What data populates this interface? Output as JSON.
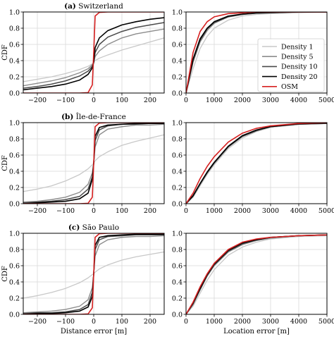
{
  "figure": {
    "x_label_left": "Distance error [m]",
    "x_label_right": "Location error [m]",
    "y_label": "CDF",
    "legend": {
      "entries": [
        {
          "name": "Density 1",
          "color": "#c8c8c8"
        },
        {
          "name": "Density 5",
          "color": "#8c8c8c"
        },
        {
          "name": "Density 10",
          "color": "#4a4a4a"
        },
        {
          "name": "Density 20",
          "color": "#000000"
        },
        {
          "name": "OSM",
          "color": "#d62020"
        }
      ],
      "placement": "right, inside top-right panel"
    }
  },
  "chart_data": [
    {
      "type": "line",
      "panel_label": "(a)",
      "panel_name": "Switzerland",
      "xlabel": "",
      "ylabel": "CDF",
      "xlim": [
        -250,
        250
      ],
      "ylim": [
        0,
        1
      ],
      "x_ticks": [
        -200,
        -100,
        0,
        100,
        200
      ],
      "y_ticks": [
        0.0,
        0.2,
        0.4,
        0.6,
        0.8,
        1.0
      ],
      "grid": true,
      "x": [
        -250,
        -200,
        -150,
        -100,
        -50,
        -20,
        -5,
        0,
        5,
        20,
        50,
        100,
        150,
        200,
        250
      ],
      "series": [
        {
          "name": "Density 1",
          "values": [
            0.14,
            0.17,
            0.2,
            0.24,
            0.29,
            0.33,
            0.36,
            0.38,
            0.4,
            0.43,
            0.47,
            0.53,
            0.58,
            0.63,
            0.68
          ]
        },
        {
          "name": "Density 5",
          "values": [
            0.09,
            0.12,
            0.15,
            0.19,
            0.25,
            0.3,
            0.35,
            0.38,
            0.45,
            0.52,
            0.6,
            0.68,
            0.73,
            0.76,
            0.79
          ]
        },
        {
          "name": "Density 10",
          "values": [
            0.06,
            0.08,
            0.11,
            0.15,
            0.21,
            0.27,
            0.33,
            0.38,
            0.5,
            0.6,
            0.69,
            0.76,
            0.81,
            0.84,
            0.87
          ]
        },
        {
          "name": "Density 20",
          "values": [
            0.04,
            0.06,
            0.08,
            0.11,
            0.16,
            0.23,
            0.31,
            0.38,
            0.56,
            0.68,
            0.77,
            0.84,
            0.88,
            0.91,
            0.93
          ]
        },
        {
          "name": "OSM",
          "values": [
            0.0,
            0.0,
            0.0,
            0.0,
            0.0,
            0.005,
            0.1,
            0.5,
            0.95,
            0.995,
            1.0,
            1.0,
            1.0,
            1.0,
            1.0
          ]
        }
      ]
    },
    {
      "type": "line",
      "panel_label": "",
      "panel_name": "",
      "xlabel": "",
      "ylabel": "",
      "xlim": [
        0,
        5000
      ],
      "ylim": [
        0,
        1
      ],
      "x_ticks": [
        0,
        1000,
        2000,
        3000,
        4000,
        5000
      ],
      "y_ticks": [
        0.0,
        0.2,
        0.4,
        0.6,
        0.8,
        1.0
      ],
      "grid": true,
      "x": [
        0,
        250,
        500,
        750,
        1000,
        1500,
        2000,
        2500,
        3000,
        4000,
        5000
      ],
      "series": [
        {
          "name": "Density 1",
          "values": [
            0.0,
            0.3,
            0.55,
            0.7,
            0.8,
            0.9,
            0.95,
            0.97,
            0.98,
            0.99,
            1.0
          ]
        },
        {
          "name": "Density 5",
          "values": [
            0.0,
            0.38,
            0.63,
            0.77,
            0.86,
            0.94,
            0.97,
            0.985,
            0.99,
            1.0,
            1.0
          ]
        },
        {
          "name": "Density 10",
          "values": [
            0.0,
            0.4,
            0.65,
            0.79,
            0.87,
            0.94,
            0.97,
            0.985,
            0.99,
            1.0,
            1.0
          ]
        },
        {
          "name": "Density 20",
          "values": [
            0.0,
            0.42,
            0.67,
            0.8,
            0.88,
            0.95,
            0.975,
            0.99,
            0.995,
            1.0,
            1.0
          ]
        },
        {
          "name": "OSM",
          "values": [
            0.0,
            0.5,
            0.76,
            0.88,
            0.94,
            0.98,
            0.99,
            1.0,
            1.0,
            1.0,
            1.0
          ]
        }
      ]
    },
    {
      "type": "line",
      "panel_label": "(b)",
      "panel_name": "Île-de-France",
      "xlabel": "",
      "ylabel": "CDF",
      "xlim": [
        -250,
        250
      ],
      "ylim": [
        0,
        1
      ],
      "x_ticks": [
        -200,
        -100,
        0,
        100,
        200
      ],
      "y_ticks": [
        0.0,
        0.2,
        0.4,
        0.6,
        0.8,
        1.0
      ],
      "grid": true,
      "x": [
        -250,
        -200,
        -150,
        -100,
        -50,
        -20,
        -5,
        0,
        5,
        20,
        50,
        100,
        150,
        200,
        250
      ],
      "series": [
        {
          "name": "Density 1",
          "values": [
            0.15,
            0.18,
            0.22,
            0.28,
            0.36,
            0.43,
            0.48,
            0.5,
            0.53,
            0.58,
            0.64,
            0.72,
            0.77,
            0.81,
            0.85
          ]
        },
        {
          "name": "Density 5",
          "values": [
            0.02,
            0.03,
            0.05,
            0.08,
            0.14,
            0.24,
            0.38,
            0.5,
            0.7,
            0.85,
            0.92,
            0.95,
            0.97,
            0.97,
            0.98
          ]
        },
        {
          "name": "Density 10",
          "values": [
            0.01,
            0.02,
            0.03,
            0.05,
            0.09,
            0.18,
            0.33,
            0.5,
            0.78,
            0.91,
            0.96,
            0.98,
            0.98,
            0.99,
            0.99
          ]
        },
        {
          "name": "Density 20",
          "values": [
            0.0,
            0.01,
            0.02,
            0.03,
            0.06,
            0.13,
            0.3,
            0.5,
            0.83,
            0.94,
            0.97,
            0.98,
            0.99,
            0.99,
            0.99
          ]
        },
        {
          "name": "OSM",
          "values": [
            0.0,
            0.0,
            0.0,
            0.0,
            0.0,
            0.005,
            0.08,
            0.5,
            0.95,
            0.995,
            1.0,
            1.0,
            1.0,
            1.0,
            1.0
          ]
        }
      ]
    },
    {
      "type": "line",
      "panel_label": "",
      "panel_name": "",
      "xlabel": "",
      "ylabel": "",
      "xlim": [
        0,
        5000
      ],
      "ylim": [
        0,
        1
      ],
      "x_ticks": [
        0,
        1000,
        2000,
        3000,
        4000,
        5000
      ],
      "y_ticks": [
        0.0,
        0.2,
        0.4,
        0.6,
        0.8,
        1.0
      ],
      "grid": true,
      "x": [
        0,
        250,
        500,
        750,
        1000,
        1500,
        2000,
        2500,
        3000,
        4000,
        5000
      ],
      "series": [
        {
          "name": "Density 1",
          "values": [
            0.0,
            0.08,
            0.22,
            0.36,
            0.48,
            0.68,
            0.81,
            0.89,
            0.94,
            0.98,
            0.99
          ]
        },
        {
          "name": "Density 5",
          "values": [
            0.0,
            0.09,
            0.24,
            0.38,
            0.5,
            0.7,
            0.83,
            0.9,
            0.95,
            0.98,
            0.99
          ]
        },
        {
          "name": "Density 10",
          "values": [
            0.0,
            0.09,
            0.24,
            0.38,
            0.5,
            0.7,
            0.83,
            0.9,
            0.95,
            0.98,
            0.99
          ]
        },
        {
          "name": "Density 20",
          "values": [
            0.0,
            0.1,
            0.25,
            0.39,
            0.51,
            0.71,
            0.84,
            0.91,
            0.95,
            0.985,
            0.995
          ]
        },
        {
          "name": "OSM",
          "values": [
            0.0,
            0.13,
            0.31,
            0.46,
            0.58,
            0.76,
            0.87,
            0.93,
            0.96,
            0.99,
            1.0
          ]
        }
      ]
    },
    {
      "type": "line",
      "panel_label": "(c)",
      "panel_name": "São Paulo",
      "xlabel": "Distance error [m]",
      "ylabel": "CDF",
      "xlim": [
        -250,
        250
      ],
      "ylim": [
        0,
        1
      ],
      "x_ticks": [
        -200,
        -100,
        0,
        100,
        200
      ],
      "y_ticks": [
        0.0,
        0.2,
        0.4,
        0.6,
        0.8,
        1.0
      ],
      "grid": true,
      "x": [
        -250,
        -200,
        -150,
        -100,
        -50,
        -20,
        -5,
        0,
        5,
        20,
        50,
        100,
        150,
        200,
        250
      ],
      "series": [
        {
          "name": "Density 1",
          "values": [
            0.2,
            0.23,
            0.27,
            0.32,
            0.39,
            0.45,
            0.49,
            0.5,
            0.52,
            0.56,
            0.61,
            0.67,
            0.71,
            0.74,
            0.77
          ]
        },
        {
          "name": "Density 5",
          "values": [
            0.02,
            0.03,
            0.04,
            0.06,
            0.1,
            0.18,
            0.33,
            0.5,
            0.72,
            0.86,
            0.92,
            0.95,
            0.96,
            0.96,
            0.97
          ]
        },
        {
          "name": "Density 10",
          "values": [
            0.01,
            0.02,
            0.02,
            0.03,
            0.06,
            0.12,
            0.27,
            0.5,
            0.8,
            0.92,
            0.96,
            0.97,
            0.98,
            0.98,
            0.98
          ]
        },
        {
          "name": "Density 20",
          "values": [
            0.0,
            0.01,
            0.01,
            0.02,
            0.04,
            0.09,
            0.22,
            0.5,
            0.85,
            0.95,
            0.97,
            0.98,
            0.99,
            0.99,
            0.99
          ]
        },
        {
          "name": "OSM",
          "values": [
            0.0,
            0.0,
            0.0,
            0.0,
            0.0,
            0.005,
            0.08,
            0.5,
            0.95,
            0.995,
            1.0,
            1.0,
            1.0,
            1.0,
            1.0
          ]
        }
      ]
    },
    {
      "type": "line",
      "panel_label": "",
      "panel_name": "",
      "xlabel": "Location error [m]",
      "ylabel": "",
      "xlim": [
        0,
        5000
      ],
      "ylim": [
        0,
        1
      ],
      "x_ticks": [
        0,
        1000,
        2000,
        3000,
        4000,
        5000
      ],
      "y_ticks": [
        0.0,
        0.2,
        0.4,
        0.6,
        0.8,
        1.0
      ],
      "grid": true,
      "x": [
        0,
        250,
        500,
        750,
        1000,
        1500,
        2000,
        2500,
        3000,
        4000,
        5000
      ],
      "series": [
        {
          "name": "Density 1",
          "values": [
            0.0,
            0.1,
            0.26,
            0.42,
            0.55,
            0.73,
            0.83,
            0.89,
            0.93,
            0.96,
            0.97
          ]
        },
        {
          "name": "Density 5",
          "values": [
            0.0,
            0.12,
            0.3,
            0.47,
            0.6,
            0.77,
            0.86,
            0.91,
            0.94,
            0.97,
            0.98
          ]
        },
        {
          "name": "Density 10",
          "values": [
            0.0,
            0.13,
            0.31,
            0.48,
            0.61,
            0.78,
            0.87,
            0.92,
            0.95,
            0.97,
            0.98
          ]
        },
        {
          "name": "Density 20",
          "values": [
            0.0,
            0.14,
            0.32,
            0.49,
            0.62,
            0.79,
            0.88,
            0.92,
            0.95,
            0.97,
            0.98
          ]
        },
        {
          "name": "OSM",
          "values": [
            0.0,
            0.15,
            0.34,
            0.5,
            0.63,
            0.8,
            0.89,
            0.93,
            0.95,
            0.97,
            0.98
          ]
        }
      ]
    }
  ]
}
